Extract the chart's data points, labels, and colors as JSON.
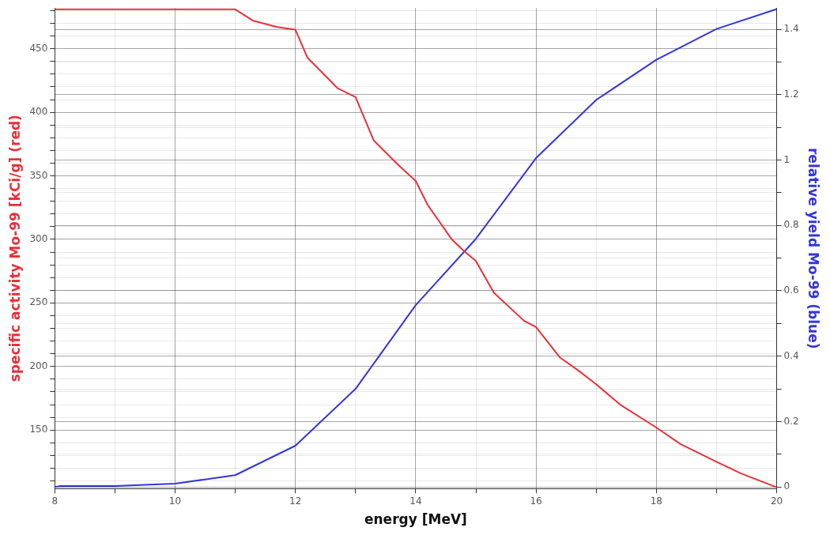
{
  "chart_data": {
    "type": "line",
    "xlabel": "energy [MeV]",
    "ylabel": "specific activity Mo-99 [kCi/g] (red)",
    "y2label": "relative yield Mo-99 (blue)",
    "xlim": [
      8,
      20
    ],
    "xticks": [
      8,
      {
        "value": 9,
        "label": null
      },
      10,
      {
        "value": 11,
        "label": null
      },
      12,
      {
        "value": 13,
        "label": null
      },
      14,
      {
        "value": 15,
        "label": null
      },
      16,
      {
        "value": 17,
        "label": null
      },
      18,
      {
        "value": 19,
        "label": null
      },
      20
    ],
    "ylim": [
      104,
      482
    ],
    "yticks": [
      {
        "value": 110,
        "label": null
      },
      {
        "value": 120,
        "label": null
      },
      {
        "value": 130,
        "label": null
      },
      {
        "value": 140,
        "label": null
      },
      150,
      {
        "value": 160,
        "label": null
      },
      {
        "value": 170,
        "label": null
      },
      {
        "value": 180,
        "label": null
      },
      {
        "value": 190,
        "label": null
      },
      200,
      {
        "value": 210,
        "label": null
      },
      {
        "value": 220,
        "label": null
      },
      {
        "value": 230,
        "label": null
      },
      {
        "value": 240,
        "label": null
      },
      250,
      {
        "value": 260,
        "label": null
      },
      {
        "value": 270,
        "label": null
      },
      {
        "value": 280,
        "label": null
      },
      {
        "value": 290,
        "label": null
      },
      300,
      {
        "value": 310,
        "label": null
      },
      {
        "value": 320,
        "label": null
      },
      {
        "value": 330,
        "label": null
      },
      {
        "value": 340,
        "label": null
      },
      350,
      {
        "value": 360,
        "label": null
      },
      {
        "value": 370,
        "label": null
      },
      {
        "value": 380,
        "label": null
      },
      {
        "value": 390,
        "label": null
      },
      400,
      {
        "value": 410,
        "label": null
      },
      {
        "value": 420,
        "label": null
      },
      {
        "value": 430,
        "label": null
      },
      {
        "value": 440,
        "label": null
      },
      450,
      {
        "value": 460,
        "label": null
      },
      {
        "value": 470,
        "label": null
      },
      {
        "value": 480,
        "label": null
      }
    ],
    "y2lim": [
      -0.005,
      1.465
    ],
    "y2ticks": [
      0,
      {
        "value": 0.1,
        "label": null
      },
      0.2,
      {
        "value": 0.3,
        "label": null
      },
      0.4,
      {
        "value": 0.5,
        "label": null
      },
      0.6,
      {
        "value": 0.7,
        "label": null
      },
      0.8,
      {
        "value": 0.9,
        "label": null
      },
      1,
      {
        "value": 1.1,
        "label": null
      },
      1.2,
      {
        "value": 1.3,
        "label": null
      },
      1.4
    ],
    "grid": true,
    "legend": false,
    "marker": "none",
    "line_style": "solid",
    "series": [
      {
        "color": "#e8303a",
        "x": [
          8,
          9,
          10,
          11,
          11.3,
          11.7,
          12,
          12.2,
          12.7,
          13,
          13.3,
          13.7,
          14,
          14.2,
          14.6,
          14.8,
          15,
          15.3,
          15.8,
          16,
          16.4,
          16.7,
          17,
          17.4,
          18,
          18.4,
          19,
          19.4,
          20
        ],
        "values": [
          481,
          481,
          481,
          481,
          472,
          467,
          465,
          443,
          419,
          412,
          378,
          359,
          346,
          327,
          300,
          291,
          283,
          258,
          236,
          231,
          207,
          197,
          186,
          170,
          152,
          139,
          125,
          116,
          105
        ]
      },
      {
        "color": "#3535dd",
        "axis": "y2",
        "x": [
          8,
          8.1,
          9,
          10,
          11,
          12,
          13,
          14,
          15,
          16,
          17,
          18,
          19,
          20
        ],
        "values": [
          0,
          0.003,
          0.003,
          0.01,
          0.036,
          0.126,
          0.3,
          0.556,
          0.759,
          1.006,
          1.184,
          1.307,
          1.401,
          1.462
        ]
      }
    ]
  }
}
